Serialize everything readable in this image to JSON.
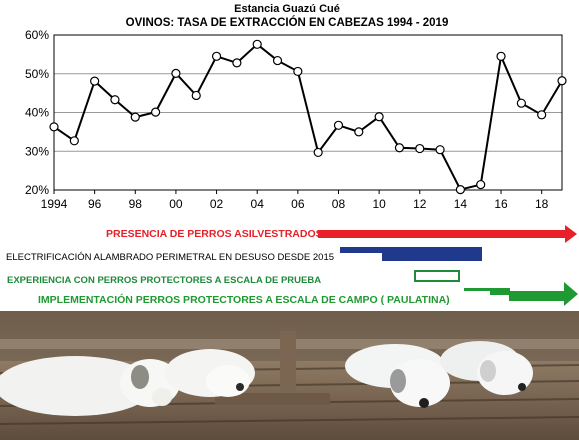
{
  "chart_data": {
    "type": "line",
    "title": "Estancia Guazú Cué",
    "subtitle": "OVINOS: TASA DE EXTRACCIÓN EN CABEZAS 1994 - 2019",
    "x": [
      1994,
      1995,
      1996,
      1997,
      1998,
      1999,
      2000,
      2001,
      2002,
      2003,
      2004,
      2005,
      2006,
      2007,
      2008,
      2009,
      2010,
      2011,
      2012,
      2013,
      2014,
      2015,
      2016,
      2017,
      2018,
      2019
    ],
    "series": [
      {
        "values": [
          36.3,
          32.7,
          48.1,
          43.3,
          38.8,
          40.1,
          50.1,
          44.4,
          54.5,
          52.8,
          57.6,
          53.4,
          50.6,
          29.7,
          36.7,
          35.0,
          38.9,
          30.9,
          30.7,
          30.4,
          20.1,
          21.4,
          54.5,
          42.4,
          39.4,
          48.2
        ]
      }
    ],
    "xticks": [
      "1994",
      "96",
      "98",
      "00",
      "02",
      "04",
      "06",
      "08",
      "10",
      "12",
      "14",
      "16",
      "18"
    ],
    "xtick_values": [
      1994,
      1996,
      1998,
      2000,
      2002,
      2004,
      2006,
      2008,
      2010,
      2012,
      2014,
      2016,
      2018
    ],
    "xlim": [
      1994,
      2019
    ],
    "yticks": [
      "20%",
      "30%",
      "40%",
      "50%",
      "60%"
    ],
    "ytick_values": [
      20,
      30,
      40,
      50,
      60
    ],
    "ylim": [
      20,
      60
    ],
    "grid": true,
    "line_color": "#000000"
  },
  "annotations": {
    "perros_asilvestrados": {
      "label": "PRESENCIA DE PERROS ASILVESTRADOS",
      "color": "#e8202a",
      "from_year": 2007,
      "to_year": 2019
    },
    "electrificacion": {
      "label": "ELECTRIFICACIÓN ALAMBRADO PERIMETRAL  EN DESUSO DESDE 2015",
      "color": "#1f3a8c",
      "from_year": 2009,
      "to_year": 2015
    },
    "prueba": {
      "label": "EXPERIENCIA CON PERROS PROTECTORES A ESCALA DE PRUEBA",
      "color": "#1f8b3a",
      "from_year": 2012,
      "to_year": 2014
    },
    "campo": {
      "label": "IMPLEMENTACIÓN PERROS PROTECTORES A ESCALA DE CAMPO ( PAULATINA)",
      "color": "#1f9a32",
      "from_year": 2015,
      "to_year": 2019
    }
  }
}
